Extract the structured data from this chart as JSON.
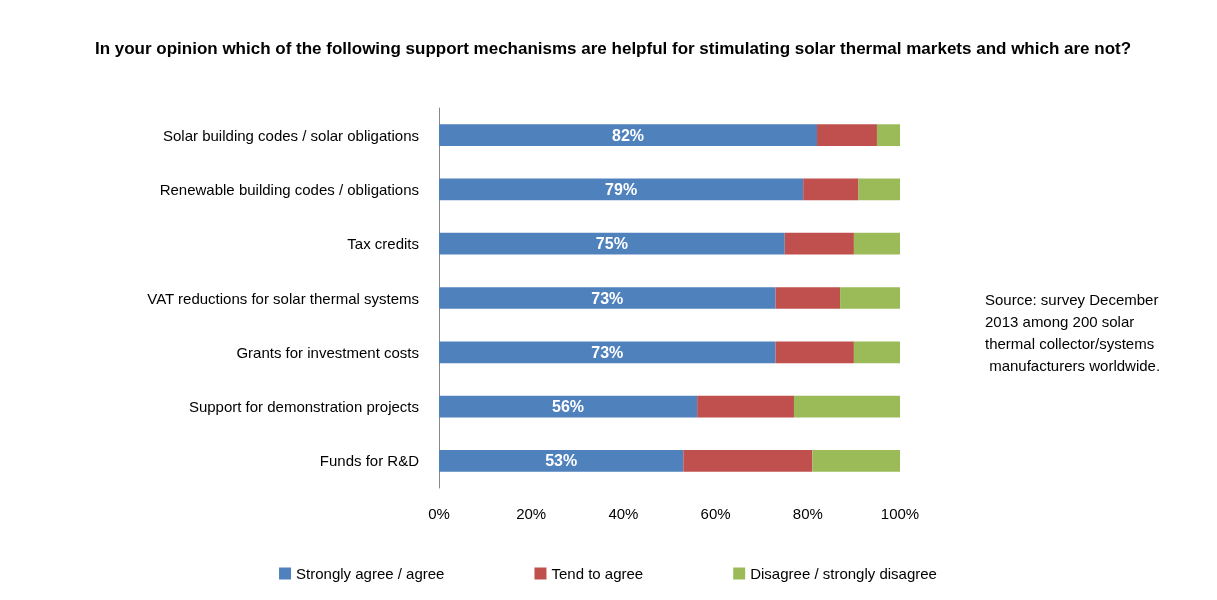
{
  "chart_data": {
    "type": "bar",
    "orientation": "horizontal",
    "stacked": true,
    "title": "In your opinion which of the following support mechanisms are helpful for stimulating solar thermal markets and which are not?",
    "categories": [
      "Solar building codes / solar obligations",
      "Renewable building codes / obligations",
      "Tax credits",
      "VAT reductions for solar thermal systems",
      "Grants for investment costs",
      "Support for demonstration projects",
      "Funds for R&D"
    ],
    "series": [
      {
        "name": "Strongly agree / agree",
        "color": "#4f81bd",
        "values": [
          82,
          79,
          75,
          73,
          73,
          56,
          53
        ],
        "value_labels": [
          "82%",
          "79%",
          "75%",
          "73%",
          "73%",
          "56%",
          "53%"
        ]
      },
      {
        "name": "Tend to agree",
        "color": "#c0504d",
        "values": [
          13,
          12,
          15,
          14,
          17,
          21,
          28
        ]
      },
      {
        "name": "Disagree / strongly disagree",
        "color": "#9bbb59",
        "values": [
          5,
          9,
          10,
          13,
          10,
          23,
          19
        ]
      }
    ],
    "xlim": [
      0,
      100
    ],
    "xticks": [
      {
        "value": 0,
        "label": "0%"
      },
      {
        "value": 20,
        "label": "20%"
      },
      {
        "value": 40,
        "label": "40%"
      },
      {
        "value": 60,
        "label": "60%"
      },
      {
        "value": 80,
        "label": "80%"
      },
      {
        "value": 100,
        "label": "100%"
      }
    ],
    "annotations": [
      "Source: survey December 2013 among 200 solar thermal collector/systems manufacturers worldwide."
    ],
    "legend": "bottom",
    "grid": false
  }
}
